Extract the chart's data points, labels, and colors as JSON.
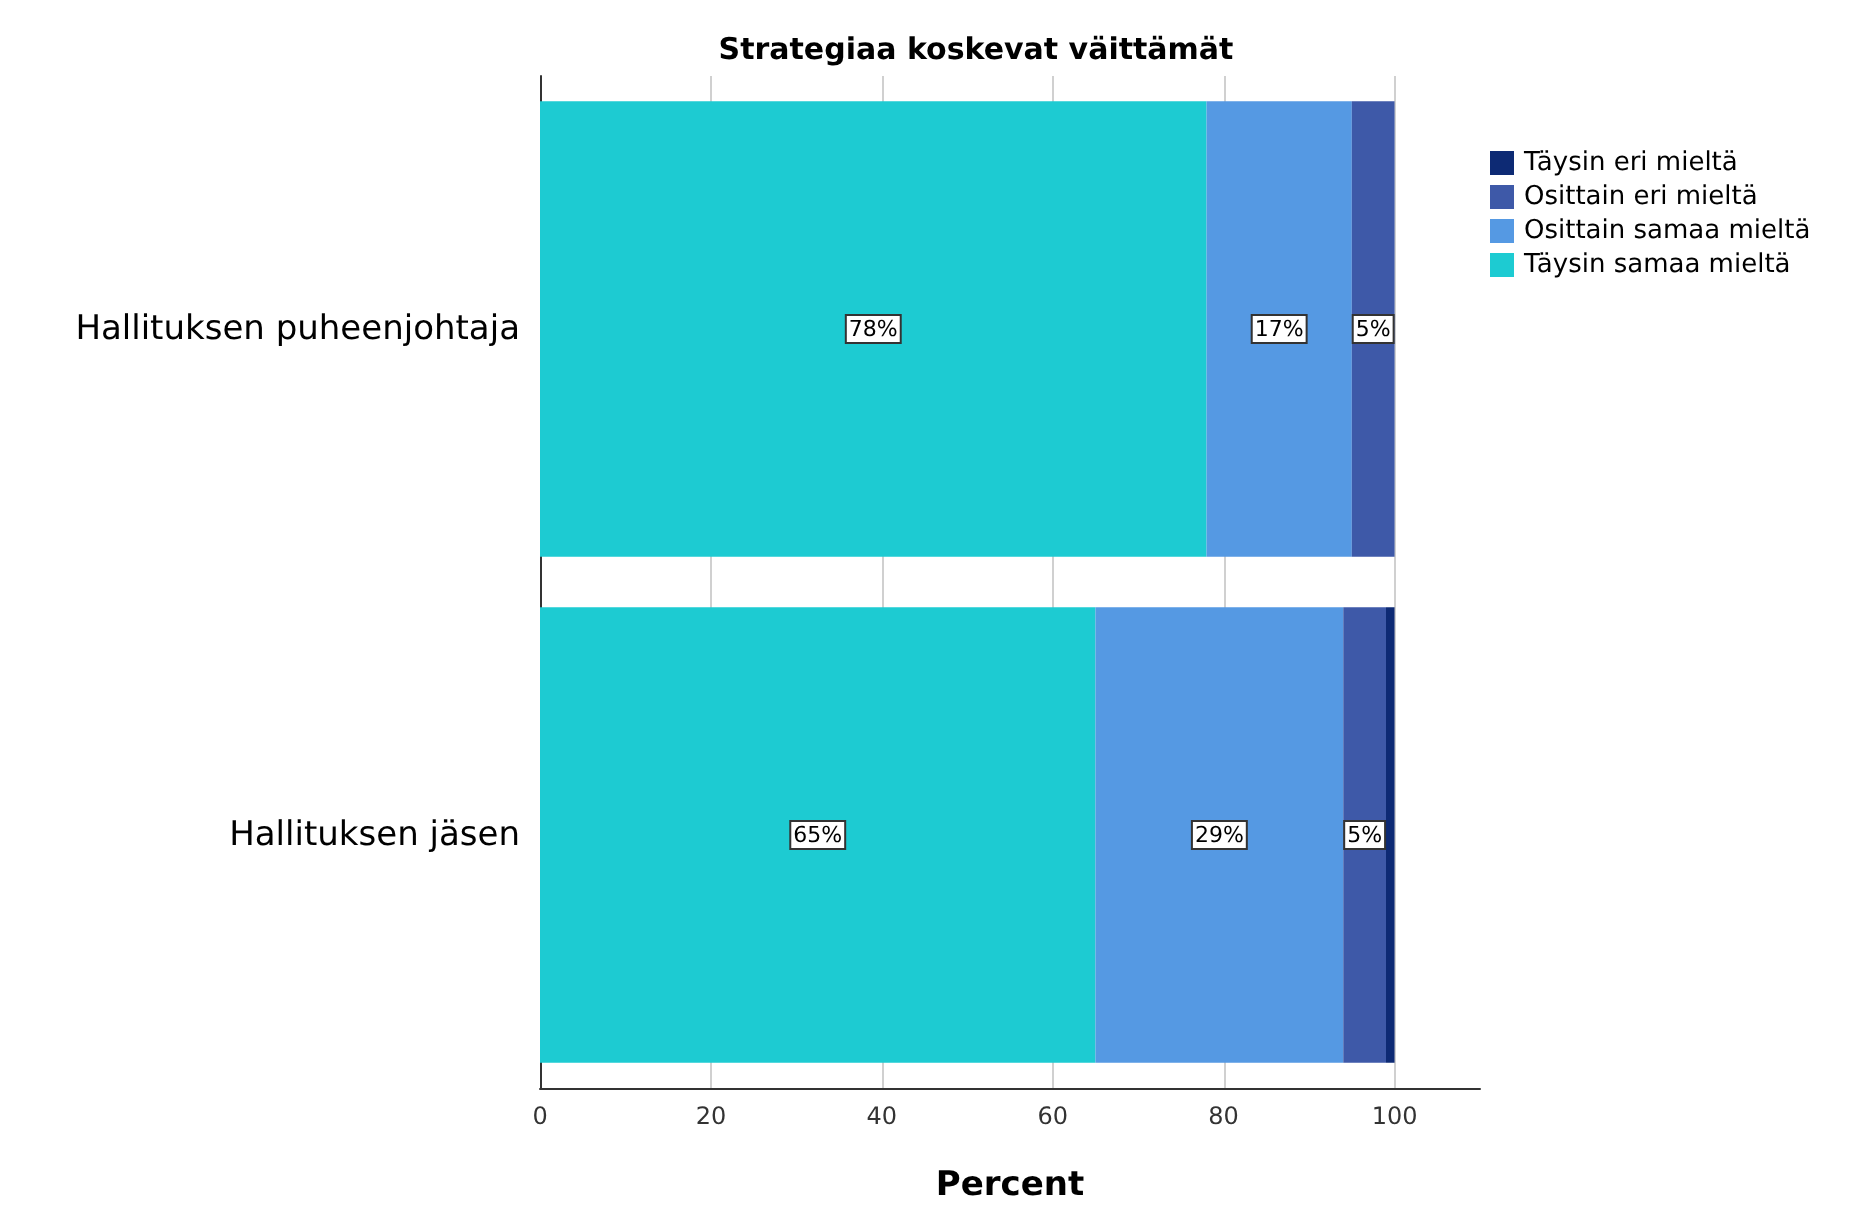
{
  "chart_data": {
    "type": "bar",
    "orientation": "horizontal",
    "stacked": true,
    "title": "Strategiaa koskevat väittämät",
    "xlabel": "Percent",
    "categories": [
      "Hallituksen puheenjohtaja",
      "Hallituksen jäsen"
    ],
    "series": [
      {
        "name": "Täysin samaa mieltä",
        "color": "#1dcbd2",
        "values": [
          78,
          65
        ],
        "value_labels": [
          "78%",
          "65%"
        ]
      },
      {
        "name": "Osittain samaa mieltä",
        "color": "#5599e3",
        "values": [
          17,
          29
        ],
        "value_labels": [
          "17%",
          "29%"
        ]
      },
      {
        "name": "Osittain eri mieltä",
        "color": "#3e59a8",
        "values": [
          5,
          5
        ],
        "value_labels": [
          "5%",
          "5%"
        ]
      },
      {
        "name": "Täysin eri mieltä",
        "color": "#0d2a74",
        "values": [
          0,
          1
        ],
        "value_labels": [
          null,
          null
        ]
      }
    ],
    "xlim": [
      0,
      110
    ],
    "xticks": [
      0,
      20,
      40,
      60,
      80,
      100
    ],
    "grid": "x",
    "legend": "top right"
  }
}
